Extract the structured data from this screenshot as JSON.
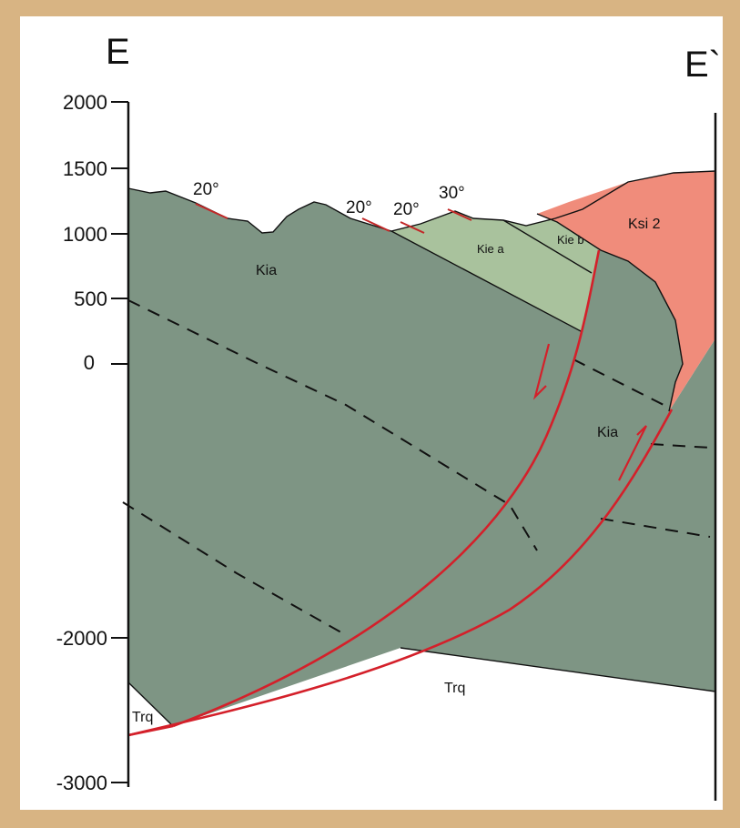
{
  "section": {
    "start_label": "E",
    "end_label": "E`"
  },
  "elevation_axis": {
    "ticks": [
      "2000",
      "1500",
      "1000",
      "500",
      "0",
      "-2000",
      "-3000"
    ]
  },
  "units": {
    "kia_upper": "Kia",
    "kia_lower": "Kia",
    "kie_a": "Kie a",
    "kie_b": "Kie b",
    "ksi2": "Ksi 2",
    "trq_left": "Trq",
    "trq_bottom": "Trq"
  },
  "dips": [
    "20°",
    "20°",
    "20°",
    "30°"
  ],
  "colors": {
    "kia": "#7e9584",
    "kie": "#a9c29d",
    "ksi2": "#f08c7b",
    "trq": "#ffffff",
    "fault": "#d4202a",
    "background": "#d8b483"
  }
}
